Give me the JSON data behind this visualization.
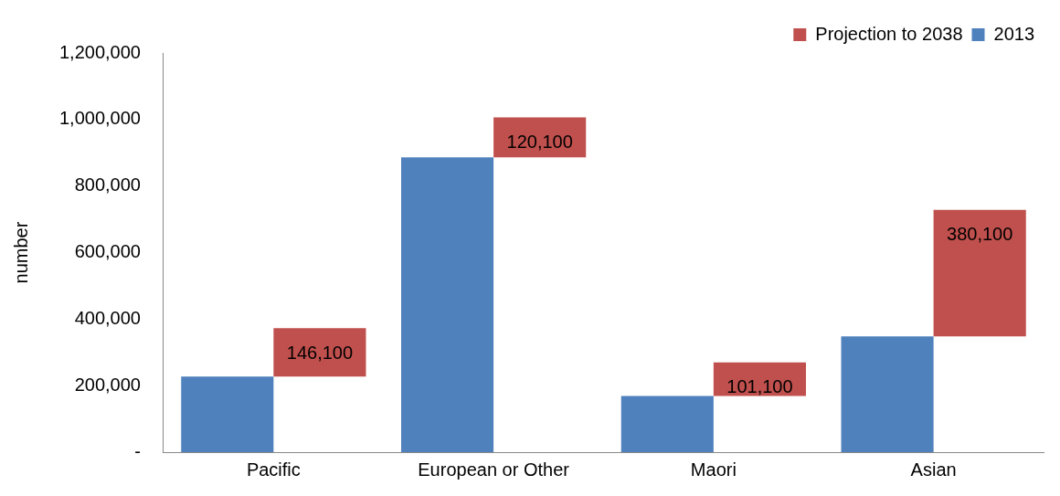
{
  "chart_data": {
    "type": "bar",
    "ylabel": "number",
    "categories": [
      "Pacific",
      "European or Other",
      "Maori",
      "Asian"
    ],
    "series": [
      {
        "name": "2013",
        "color": "#4f81bd",
        "values": [
          227000,
          886000,
          169000,
          348000
        ]
      },
      {
        "name": "Projection to 2038",
        "color": "#c0504d",
        "values": [
          146100,
          120100,
          101100,
          380100
        ],
        "base": [
          227000,
          886000,
          169000,
          348000
        ],
        "value_labels": [
          "146,100",
          "120,100",
          "101,100",
          "380,100"
        ]
      }
    ],
    "ylim": [
      0,
      1200000
    ],
    "yticks": [
      {
        "value": 0,
        "label": "-"
      },
      {
        "value": 200000,
        "label": "200,000"
      },
      {
        "value": 400000,
        "label": "400,000"
      },
      {
        "value": 600000,
        "label": "600,000"
      },
      {
        "value": 800000,
        "label": "800,000"
      },
      {
        "value": 1000000,
        "label": "1,000,000"
      },
      {
        "value": 1200000,
        "label": "1,200,000"
      }
    ],
    "grid": false,
    "legend": "top right"
  }
}
